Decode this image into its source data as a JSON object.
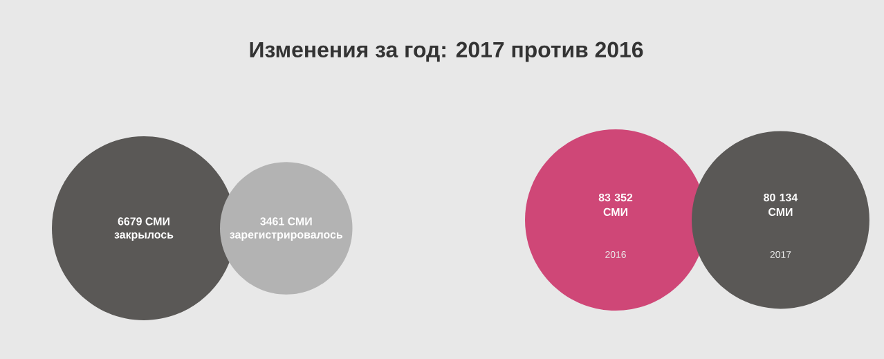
{
  "chart_data": [
    {
      "type": "other",
      "title": "Изменения за год: 2017 против 2016",
      "categories": [
        "закрылось",
        "зарегистрировалось"
      ],
      "values": [
        6679,
        3461
      ],
      "value_labels": [
        "6679 СМИ",
        "3461 СМИ"
      ],
      "colors": [
        "#5a5856",
        "#b3b3b3"
      ]
    },
    {
      "type": "other",
      "categories": [
        "2016",
        "2017"
      ],
      "values": [
        83352,
        80134
      ],
      "value_labels": [
        "83 352 СМИ",
        "80 134 СМИ"
      ],
      "colors": [
        "#cf4777",
        "#5a5856"
      ]
    }
  ]
}
